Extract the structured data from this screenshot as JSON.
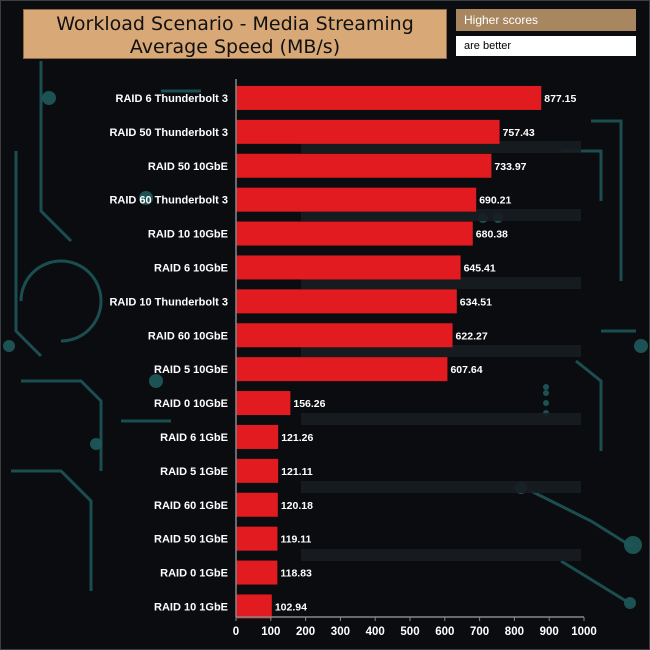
{
  "header": {
    "title_line1": "Workload Scenario - Media Streaming",
    "title_line2": "Average Speed (MB/s)",
    "note_top": "Higher scores",
    "note_bottom": "are better"
  },
  "colors": {
    "bar": "#e11b1f",
    "title_bg": "#d8a877",
    "note_bg": "#a88660",
    "background": "#0a0c0f",
    "circuit": "#1f5a5c"
  },
  "chart_data": {
    "type": "bar",
    "orientation": "horizontal",
    "title": "Workload Scenario - Media Streaming Average Speed (MB/s)",
    "categories": [
      "RAID 6 Thunderbolt 3",
      "RAID 50 Thunderbolt 3",
      "RAID 50 10GbE",
      "RAID 60 Thunderbolt 3",
      "RAID 10 10GbE",
      "RAID 6 10GbE",
      "RAID 10 Thunderbolt 3",
      "RAID 60 10GbE",
      "RAID 5 10GbE",
      "RAID 0 10GbE",
      "RAID 6 1GbE",
      "RAID 5 1GbE",
      "RAID 60 1GbE",
      "RAID 50 1GbE",
      "RAID 0 1GbE",
      "RAID 10 1GbE"
    ],
    "values": [
      877.15,
      757.43,
      733.97,
      690.21,
      680.38,
      645.41,
      634.51,
      622.27,
      607.64,
      156.26,
      121.26,
      121.11,
      120.18,
      119.11,
      118.83,
      102.94
    ],
    "value_labels": [
      "877.15",
      "757.43",
      "733.97",
      "690.21",
      "680.38",
      "645.41",
      "634.51",
      "622.27",
      "607.64",
      "156.26",
      "121.26",
      "121.11",
      "120.18",
      "119.11",
      "118.83",
      "102.94"
    ],
    "xlim": [
      0,
      1000
    ],
    "xticks": [
      "0",
      "100",
      "200",
      "300",
      "400",
      "500",
      "600",
      "700",
      "800",
      "900",
      "1000"
    ],
    "grid": false,
    "legend": "none"
  }
}
